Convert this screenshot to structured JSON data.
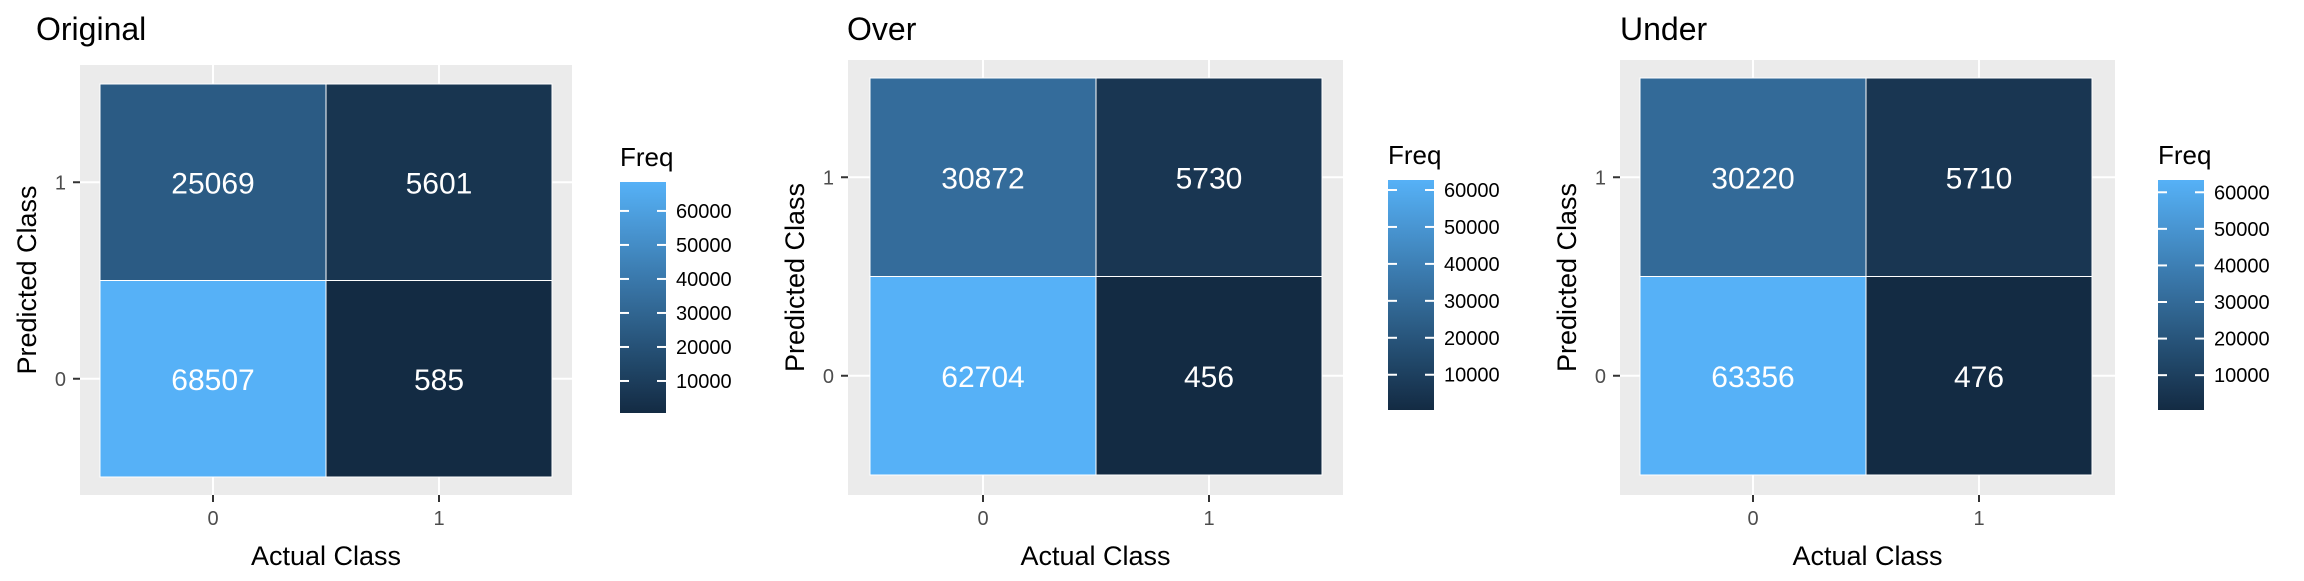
{
  "chart_data": [
    {
      "type": "heatmap",
      "title": "Original",
      "xlabel": "Actual Class",
      "ylabel": "Predicted Class",
      "x_categories": [
        "0",
        "1"
      ],
      "y_categories": [
        "0",
        "1"
      ],
      "cells": [
        {
          "actual": "0",
          "predicted": "1",
          "value": 25069
        },
        {
          "actual": "1",
          "predicted": "1",
          "value": 5601
        },
        {
          "actual": "0",
          "predicted": "0",
          "value": 68507
        },
        {
          "actual": "1",
          "predicted": "0",
          "value": 585
        }
      ],
      "legend": {
        "title": "Freq",
        "ticks": [
          10000,
          20000,
          30000,
          40000,
          50000,
          60000
        ],
        "min": 585,
        "max": 68507,
        "position": "right"
      },
      "grid": true
    },
    {
      "type": "heatmap",
      "title": "Over",
      "xlabel": "Actual Class",
      "ylabel": "Predicted Class",
      "x_categories": [
        "0",
        "1"
      ],
      "y_categories": [
        "0",
        "1"
      ],
      "cells": [
        {
          "actual": "0",
          "predicted": "1",
          "value": 30872
        },
        {
          "actual": "1",
          "predicted": "1",
          "value": 5730
        },
        {
          "actual": "0",
          "predicted": "0",
          "value": 62704
        },
        {
          "actual": "1",
          "predicted": "0",
          "value": 456
        }
      ],
      "legend": {
        "title": "Freq",
        "ticks": [
          10000,
          20000,
          30000,
          40000,
          50000,
          60000
        ],
        "min": 456,
        "max": 62704,
        "position": "right"
      },
      "grid": true
    },
    {
      "type": "heatmap",
      "title": "Under",
      "xlabel": "Actual Class",
      "ylabel": "Predicted Class",
      "x_categories": [
        "0",
        "1"
      ],
      "y_categories": [
        "0",
        "1"
      ],
      "cells": [
        {
          "actual": "0",
          "predicted": "1",
          "value": 30220
        },
        {
          "actual": "1",
          "predicted": "1",
          "value": 5710
        },
        {
          "actual": "0",
          "predicted": "0",
          "value": 63356
        },
        {
          "actual": "1",
          "predicted": "0",
          "value": 476
        }
      ],
      "legend": {
        "title": "Freq",
        "ticks": [
          10000,
          20000,
          30000,
          40000,
          50000,
          60000
        ],
        "min": 476,
        "max": 63356,
        "position": "right"
      },
      "grid": true
    }
  ],
  "colors": {
    "low": "#132B43",
    "high": "#56B1F7",
    "panel_background": "#EBEBEB",
    "grid": "#FFFFFF",
    "cell_text": "#FFFFFF",
    "title_text": "#000000",
    "axis_text": "#4D4D4D"
  }
}
